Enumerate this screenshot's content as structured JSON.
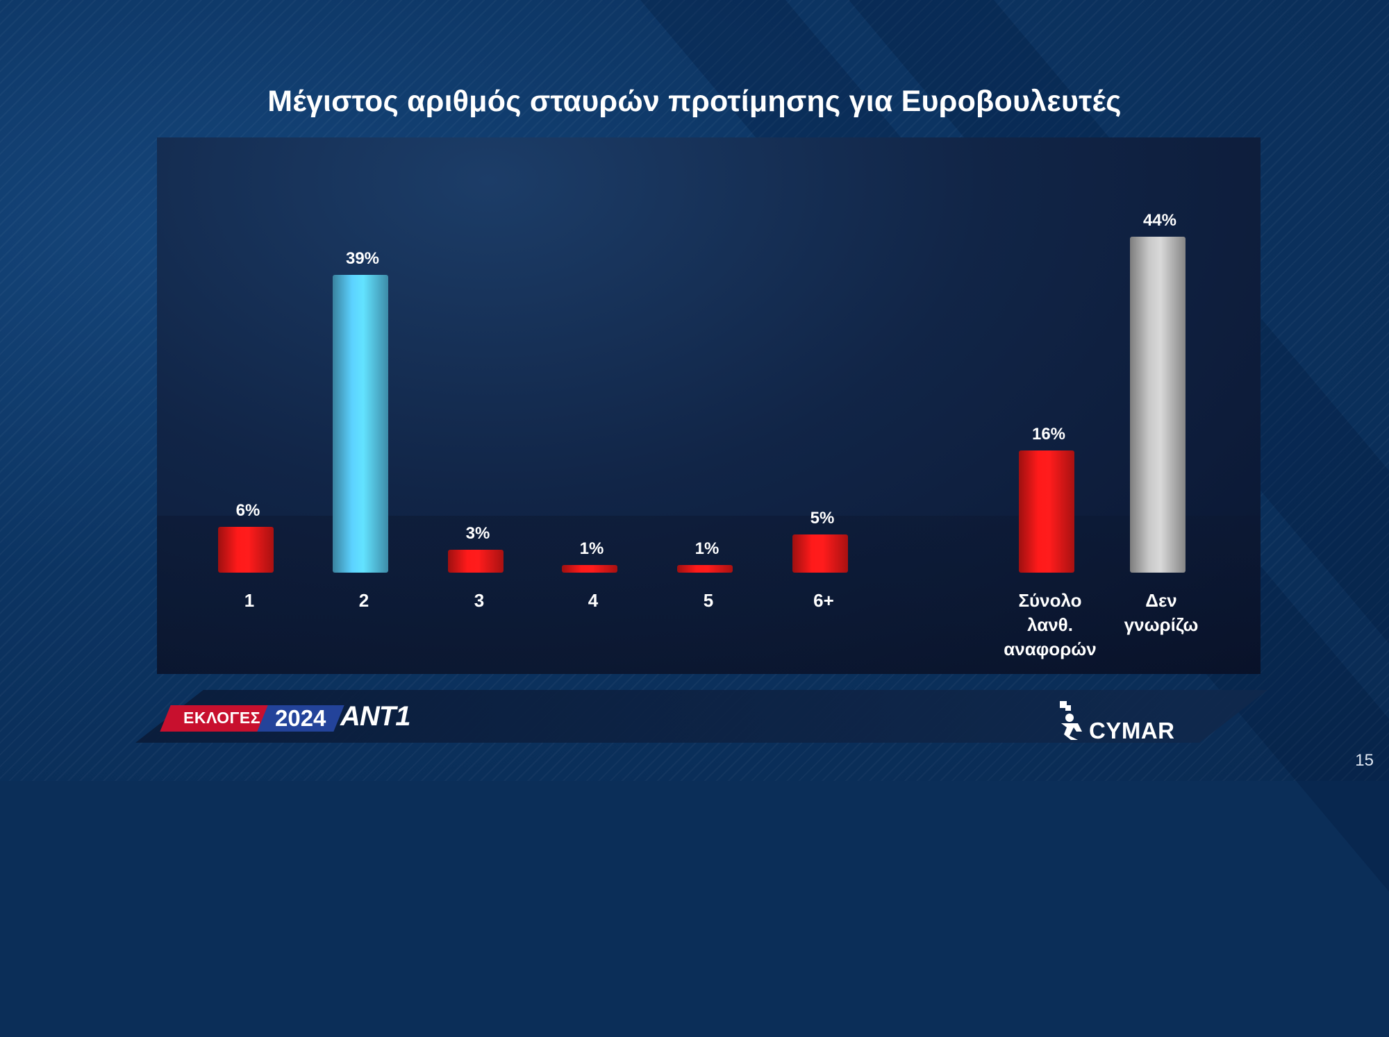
{
  "title": "Μέγιστος αριθμός σταυρών προτίμησης για Ευροβουλευτές",
  "chart_data": {
    "type": "bar",
    "title": "Μέγιστος αριθμός σταυρών προτίμησης για Ευροβουλευτές",
    "xlabel": "",
    "ylabel": "",
    "ylim": [
      0,
      45
    ],
    "grid": false,
    "legend": "none",
    "categories": [
      "1",
      "2",
      "3",
      "4",
      "5",
      "6+",
      "Σύνολο λανθ. αναφορών",
      "Δεν γνωρίζω"
    ],
    "category_lines": [
      [
        "1"
      ],
      [
        "2"
      ],
      [
        "3"
      ],
      [
        "4"
      ],
      [
        "5"
      ],
      [
        "6+"
      ],
      [
        "Σύνολο",
        "λανθ.",
        "αναφορών"
      ],
      [
        "Δεν",
        "γνωρίζω"
      ]
    ],
    "values": [
      6,
      39,
      3,
      1,
      1,
      5,
      16,
      44
    ],
    "data_labels": [
      "6%",
      "39%",
      "3%",
      "1%",
      "1%",
      "5%",
      "16%",
      "44%"
    ],
    "bar_colors": [
      "#ff1a1a",
      "#5cd2ff",
      "#ff1a1a",
      "#ff1a1a",
      "#ff1a1a",
      "#ff1a1a",
      "#ff1a1a",
      "#c9c9c9"
    ]
  },
  "footer": {
    "election_label": "ΕΚΛΟΓΕΣ",
    "year": "2024",
    "channel": "ANT1",
    "pollster": "CYMAR"
  },
  "page_number": "15"
}
